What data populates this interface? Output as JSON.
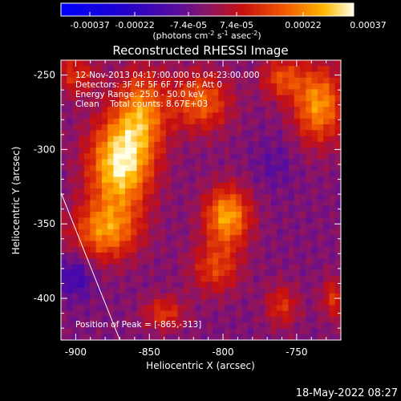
{
  "colorbar": {
    "ticks": [
      "-0.00037",
      "-0.00022",
      "-7.4e-05",
      "7.4e-05",
      "0.00022",
      "0.00037"
    ],
    "unit_base": "(photons cm",
    "unit_exp1": "-2",
    "unit_mid": " s",
    "unit_exp2": "-1",
    "unit_end": " asec",
    "unit_exp3": "-2",
    "unit_close": ")"
  },
  "plot": {
    "info_lines": [
      "12-Nov-2013 04:17:00.000 to 04:23:00.000",
      "Detectors: 3F 4F 5F 6F 7F 8F, Att 0",
      "Energy Range: 25.0 - 50.0 keV",
      "Clean    Total counts: 8.67E+03"
    ],
    "peak_text": "Position of Peak = [-865,-313]"
  },
  "footer": {
    "date": "18-May-2022 08:27"
  },
  "chart_data": {
    "type": "heatmap",
    "title": "Reconstructed RHESSI Image",
    "xlabel": "Heliocentric X (arcsec)",
    "ylabel": "Heliocentric Y (arcsec)",
    "xlim": [
      -910,
      -720
    ],
    "ylim": [
      -428,
      -240
    ],
    "x_ticks": [
      -900,
      -850,
      -800,
      -750
    ],
    "x_tick_labels": [
      "-900",
      "-850",
      "-800",
      "-750"
    ],
    "y_ticks": [
      -250,
      -300,
      -350,
      -400
    ],
    "y_tick_labels": [
      "-250",
      "-300",
      "-350",
      "-400"
    ],
    "colorbar_range": [
      -0.00037,
      0.00037
    ],
    "peak": {
      "x": -865,
      "y": -313
    },
    "limb_line": [
      [
        -910,
        -329
      ],
      [
        -870,
        -428
      ]
    ],
    "blobs": [
      {
        "x": -870,
        "y": -310,
        "value": 0.00037,
        "sx": 15,
        "sy": 22
      },
      {
        "x": -855,
        "y": -275,
        "value": 0.00024,
        "sx": 12,
        "sy": 20
      },
      {
        "x": -880,
        "y": -355,
        "value": 0.00025,
        "sx": 16,
        "sy": 14
      },
      {
        "x": -815,
        "y": -268,
        "value": 0.00022,
        "sx": 14,
        "sy": 14
      },
      {
        "x": -797,
        "y": -345,
        "value": 0.0003,
        "sx": 11,
        "sy": 14
      },
      {
        "x": -805,
        "y": -380,
        "value": 0.00017,
        "sx": 12,
        "sy": 12
      },
      {
        "x": -735,
        "y": -270,
        "value": 0.00028,
        "sx": 12,
        "sy": 18
      },
      {
        "x": -760,
        "y": -252,
        "value": 0.00018,
        "sx": 10,
        "sy": 10
      },
      {
        "x": -760,
        "y": -405,
        "value": 0.00015,
        "sx": 8,
        "sy": 10
      },
      {
        "x": -725,
        "y": -400,
        "value": 0.00015,
        "sx": 6,
        "sy": 10
      },
      {
        "x": -840,
        "y": -410,
        "value": 0.00016,
        "sx": 10,
        "sy": 8
      },
      {
        "x": -900,
        "y": -250,
        "value": 0.00015,
        "sx": 10,
        "sy": 10
      },
      {
        "x": -765,
        "y": -310,
        "value": -5e-05,
        "sx": 10,
        "sy": 12
      },
      {
        "x": -900,
        "y": -385,
        "value": -0.00012,
        "sx": 8,
        "sy": 10
      }
    ],
    "background": -2e-05
  }
}
